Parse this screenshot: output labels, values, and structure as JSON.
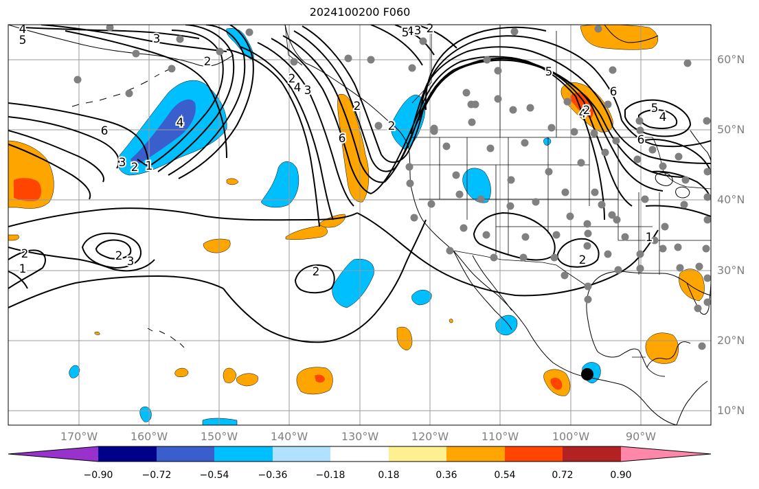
{
  "title": "2024100200 F060",
  "lat_labels": [
    "60°N",
    "50°N",
    "40°N",
    "30°N",
    "20°N",
    "10°N"
  ],
  "lon_labels": [
    "170°W",
    "160°W",
    "150°W",
    "140°W",
    "130°W",
    "120°W",
    "110°W",
    "100°W",
    "90°W"
  ],
  "colorbar": {
    "colors": [
      "#9932cc",
      "#00008b",
      "#3a5fcd",
      "#00bfff",
      "#b0e2ff",
      "#ffffff",
      "#fff08f",
      "#ffa500",
      "#ff4500",
      "#b22222",
      "#ff88aa"
    ],
    "ticks": [
      "−0.90",
      "−0.72",
      "−0.54",
      "−0.36",
      "−0.18",
      "0.18",
      "0.36",
      "0.54",
      "0.72",
      "0.90"
    ]
  },
  "contour_labels": [
    "4",
    "5",
    "3",
    "2",
    "6",
    "4",
    "3",
    "2",
    "1",
    "2",
    "1",
    "2",
    "3",
    "2",
    "2",
    "2",
    "6",
    "4",
    "3",
    "2",
    "5",
    "6",
    "4",
    "5",
    "6",
    "4",
    "2",
    "2",
    "1",
    "4",
    "5",
    "2",
    "3"
  ],
  "colors": {
    "station": "#808080",
    "storm": "#000000"
  }
}
